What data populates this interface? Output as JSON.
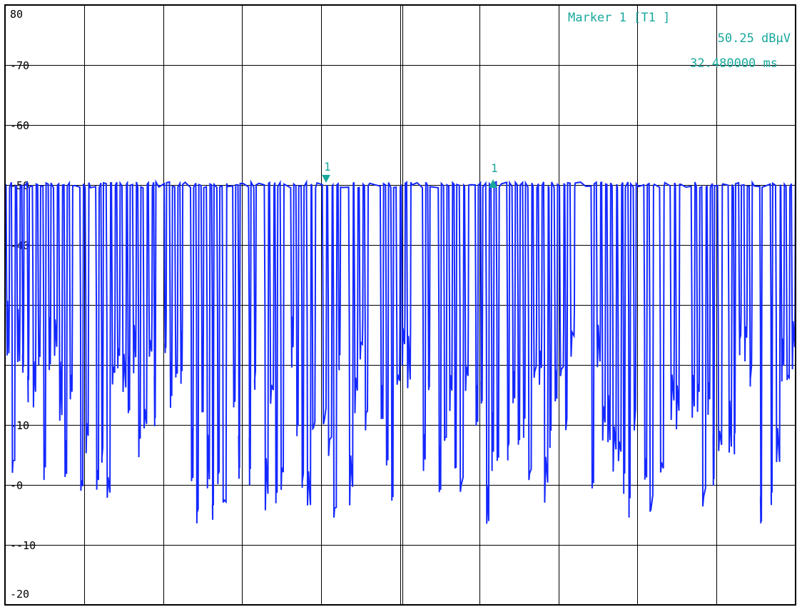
{
  "marker_panel": {
    "title": "Marker 1 [T1 ]",
    "level": "50.25 dBµV",
    "time": "32.480000 ms"
  },
  "colors": {
    "trace": "#1428ff",
    "marker": "#18a89c",
    "grid": "#000000",
    "background": "#ffffff"
  },
  "chart_data": {
    "type": "line",
    "title": "",
    "xlabel": "",
    "ylabel": "",
    "ylim": [
      -20,
      80
    ],
    "yticks": [
      80,
      70,
      60,
      50,
      40,
      30,
      20,
      10,
      0,
      -10,
      -20
    ],
    "ytick_labels": [
      "80",
      "-70",
      "-60",
      "-50",
      "-40",
      "",
      "",
      "-10",
      "-0",
      "--10",
      "-20"
    ],
    "x_divisions": 10,
    "grid": true,
    "legend": "none",
    "baseline_level": 50,
    "low_level": 30,
    "min_level": -7,
    "pulse_count": 150,
    "markers": [
      {
        "label": "1",
        "level": 50.25,
        "shape": "triangle-down",
        "time": "32.480000 ms"
      },
      {
        "label": "1",
        "level": 50.0,
        "shape": "triangle-up"
      }
    ]
  }
}
